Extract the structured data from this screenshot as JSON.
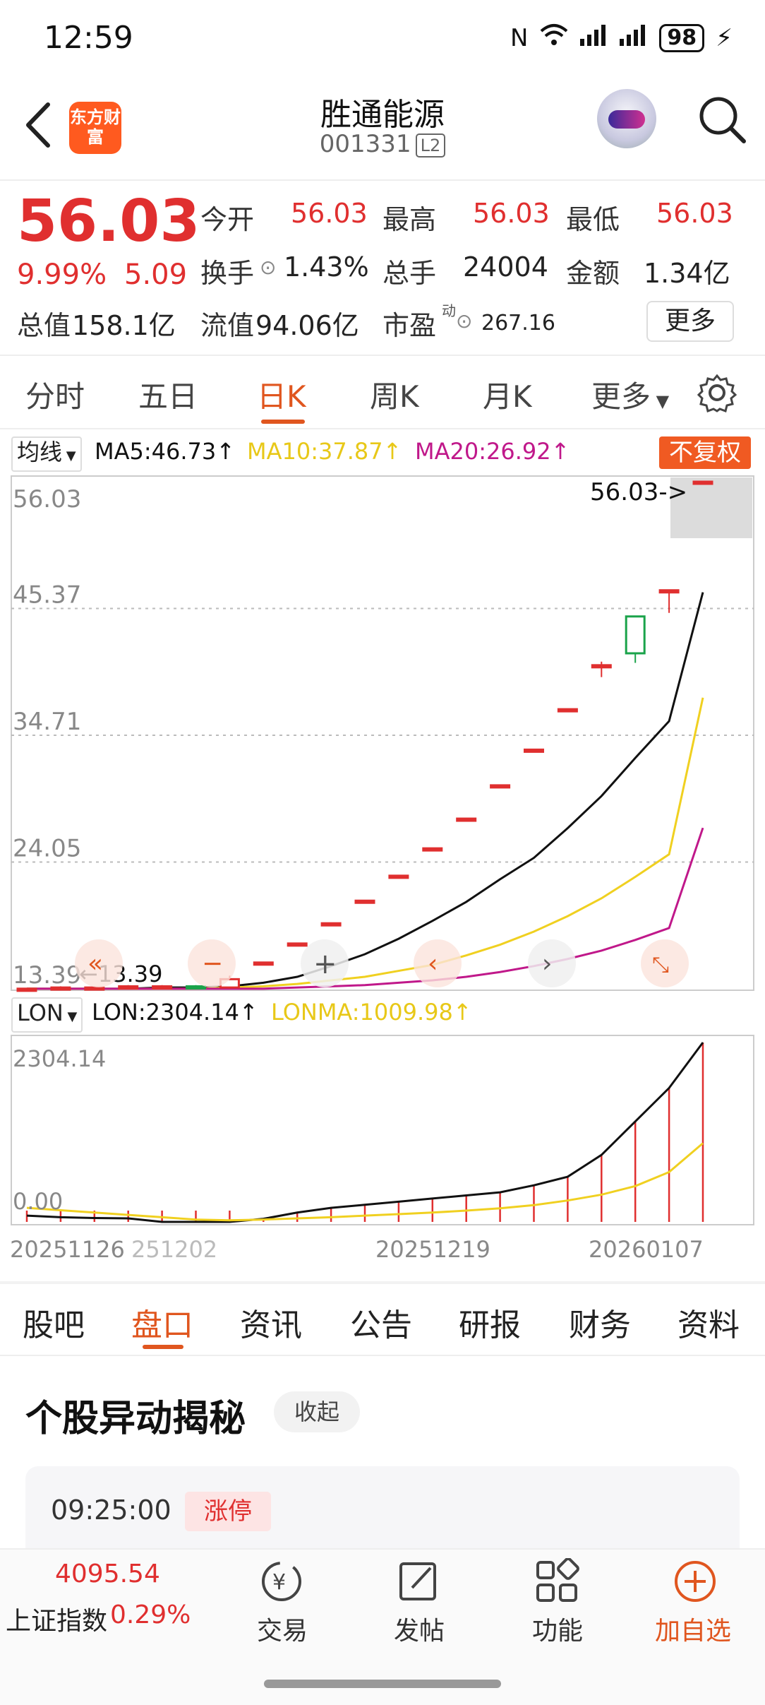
{
  "status_bar": {
    "time": "12:59",
    "battery": "98"
  },
  "header": {
    "logo_text": "东方财富",
    "stock_name": "胜通能源",
    "stock_code": "001331",
    "level_badge": "L2"
  },
  "quote": {
    "price": "56.03",
    "change_pct": "9.99%",
    "change_abs": "5.09",
    "open_label": "今开",
    "open": "56.03",
    "high_label": "最高",
    "high": "56.03",
    "low_label": "最低",
    "low": "56.03",
    "turnover_label": "换手",
    "turnover": "1.43%",
    "volume_label": "总手",
    "volume": "24004",
    "amount_label": "金额",
    "amount": "1.34亿",
    "mcap_label": "总值",
    "mcap": "158.1亿",
    "float_label": "流值",
    "float": "94.06亿",
    "pe_label": "市盈",
    "pe_super": "动",
    "pe": "267.16",
    "more": "更多"
  },
  "kline_tabs": [
    "分时",
    "五日",
    "日K",
    "周K",
    "月K",
    "更多"
  ],
  "kline_active_tab": "日K",
  "ma_legend": {
    "chip": "均线",
    "ma5": "MA5:46.73↑",
    "ma10": "MA10:37.87↑",
    "ma20": "MA20:26.92↑",
    "fq": "不复权"
  },
  "lon_legend": {
    "chip": "LON",
    "lon": "LON:2304.14↑",
    "lonma": "LONMA:1009.98↑"
  },
  "colors": {
    "up": "#e02f2f",
    "accent": "#e0561f",
    "ma5": "#111111",
    "ma10": "#f0d020",
    "ma20": "#c0188a"
  },
  "chart_data": [
    {
      "type": "candlestick",
      "title": "",
      "x_tick_labels": [
        "20251126",
        "251202",
        "20251219",
        "20260107"
      ],
      "y_tick_labels": [
        "56.03",
        "45.37",
        "34.71",
        "24.05",
        "13.39"
      ],
      "ylim": [
        13.39,
        56.03
      ],
      "last_price_label": "56.03->",
      "low_marker_label": "←13.39",
      "candles": [
        {
          "o": 13.4,
          "c": 13.4,
          "h": 13.4,
          "l": 13.4
        },
        {
          "o": 13.4,
          "c": 13.5,
          "h": 13.6,
          "l": 13.3
        },
        {
          "o": 13.5,
          "c": 13.5,
          "h": 13.6,
          "l": 13.4
        },
        {
          "o": 13.5,
          "c": 13.6,
          "h": 13.7,
          "l": 13.4
        },
        {
          "o": 13.6,
          "c": 13.6,
          "h": 13.7,
          "l": 13.5
        },
        {
          "o": 13.6,
          "c": 13.5,
          "h": 13.7,
          "l": 13.4
        },
        {
          "o": 13.5,
          "c": 14.2,
          "h": 14.5,
          "l": 13.4
        },
        {
          "o": 15.6,
          "c": 15.6,
          "h": 15.6,
          "l": 15.6
        },
        {
          "o": 17.2,
          "c": 17.2,
          "h": 17.2,
          "l": 17.2
        },
        {
          "o": 18.9,
          "c": 18.9,
          "h": 18.9,
          "l": 18.9
        },
        {
          "o": 20.8,
          "c": 20.8,
          "h": 20.8,
          "l": 20.8
        },
        {
          "o": 22.9,
          "c": 22.9,
          "h": 22.9,
          "l": 22.9
        },
        {
          "o": 25.2,
          "c": 25.2,
          "h": 25.2,
          "l": 25.2
        },
        {
          "o": 27.7,
          "c": 27.7,
          "h": 27.7,
          "l": 27.7
        },
        {
          "o": 30.5,
          "c": 30.5,
          "h": 30.5,
          "l": 30.5
        },
        {
          "o": 33.5,
          "c": 33.5,
          "h": 33.5,
          "l": 33.5
        },
        {
          "o": 36.9,
          "c": 36.9,
          "h": 36.9,
          "l": 36.9
        },
        {
          "o": 40.6,
          "c": 40.6,
          "h": 40.9,
          "l": 39.6
        },
        {
          "o": 44.7,
          "c": 41.6,
          "h": 44.7,
          "l": 40.8
        },
        {
          "o": 46.9,
          "c": 46.9,
          "h": 46.9,
          "l": 45.0
        },
        {
          "o": 56.03,
          "c": 56.03,
          "h": 56.03,
          "l": 56.03
        }
      ],
      "series": [
        {
          "name": "MA5",
          "values": [
            13.4,
            13.4,
            13.4,
            13.4,
            13.5,
            13.5,
            13.6,
            13.9,
            14.4,
            15.3,
            16.3,
            17.6,
            19.1,
            20.7,
            22.6,
            24.4,
            26.9,
            29.6,
            32.8,
            35.9,
            46.73
          ]
        },
        {
          "name": "MA10",
          "values": [
            13.4,
            13.4,
            13.4,
            13.4,
            13.4,
            13.4,
            13.5,
            13.6,
            13.8,
            14.1,
            14.4,
            14.9,
            15.4,
            16.2,
            17.1,
            18.2,
            19.5,
            21.0,
            22.8,
            24.7,
            37.87
          ]
        },
        {
          "name": "MA20",
          "values": [
            13.4,
            13.4,
            13.4,
            13.4,
            13.4,
            13.4,
            13.4,
            13.4,
            13.5,
            13.6,
            13.7,
            13.9,
            14.1,
            14.4,
            14.8,
            15.3,
            15.9,
            16.6,
            17.5,
            18.5,
            26.92
          ]
        }
      ]
    },
    {
      "type": "bar",
      "title": "",
      "y_tick_labels": [
        "2304.14",
        "0.00"
      ],
      "ylim": [
        0,
        2304.14
      ],
      "values": [
        0,
        0,
        0,
        0,
        0,
        0,
        0,
        40,
        120,
        180,
        220,
        260,
        300,
        340,
        380,
        470,
        580,
        860,
        1290,
        1720,
        2304.14
      ],
      "series": [
        {
          "name": "LON",
          "values": [
            80,
            60,
            50,
            45,
            -40,
            0,
            0,
            40,
            120,
            180,
            220,
            260,
            300,
            340,
            380,
            470,
            580,
            860,
            1290,
            1720,
            2304.14
          ]
        },
        {
          "name": "LONMA",
          "values": [
            180,
            150,
            120,
            90,
            60,
            30,
            20,
            30,
            45,
            60,
            80,
            100,
            120,
            145,
            175,
            215,
            275,
            350,
            460,
            640,
            1009.98
          ]
        }
      ]
    }
  ],
  "detail_tabs": [
    "股吧",
    "盘口",
    "资讯",
    "公告",
    "研报",
    "财务",
    "资料"
  ],
  "detail_active_tab": "盘口",
  "section": {
    "title": "个股异动揭秘",
    "collapse": "收起"
  },
  "event": {
    "time": "09:25:00",
    "tag": "涨停"
  },
  "bottom_bar": {
    "index_value": "4095.54",
    "index_name": "上证指数",
    "index_pct": "0.29%",
    "nav": [
      {
        "label": "交易",
        "icon": "trade-icon"
      },
      {
        "label": "发帖",
        "icon": "compose-icon"
      },
      {
        "label": "功能",
        "icon": "apps-icon"
      },
      {
        "label": "加自选",
        "icon": "add-watchlist-icon"
      }
    ]
  }
}
